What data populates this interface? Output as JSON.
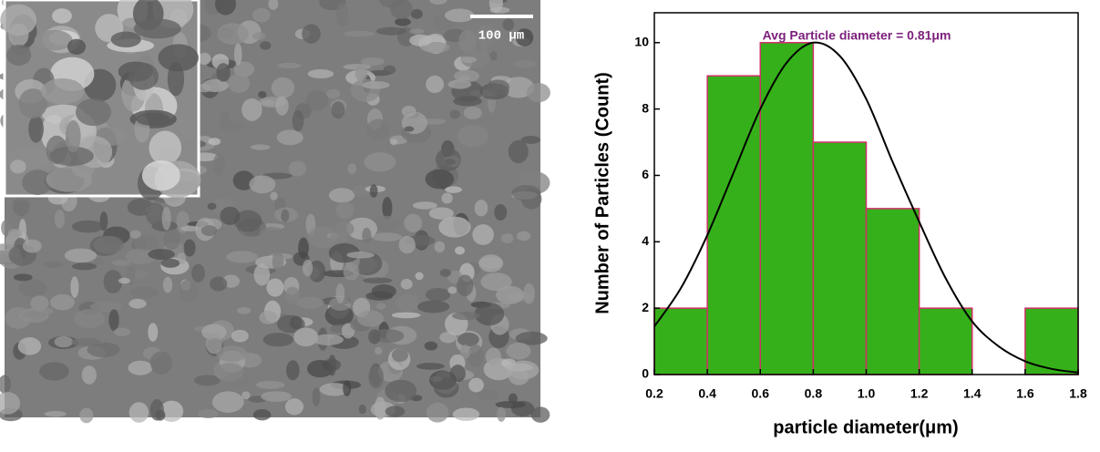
{
  "image": {
    "scale_bar": "100 μm"
  },
  "chart_data": {
    "type": "histogram",
    "annotation": "Avg Particle diameter = 0.81μm",
    "xlabel": "particle diameter(μm)",
    "ylabel": "Number of Particles (Count)",
    "bins": [
      0.2,
      0.4,
      0.6,
      0.8,
      1.0,
      1.2,
      1.4,
      1.6,
      1.8
    ],
    "values": [
      2,
      9,
      10,
      7,
      5,
      2,
      0,
      2
    ],
    "color": "#36b01a",
    "edgecolor": "#d0306a",
    "fit": {
      "color": "#000000",
      "x": [
        0.2,
        0.3,
        0.4,
        0.5,
        0.6,
        0.7,
        0.8,
        0.9,
        1.0,
        1.1,
        1.2,
        1.3,
        1.4,
        1.5,
        1.6,
        1.7,
        1.8
      ],
      "y": [
        1.45,
        2.6,
        4.2,
        6.1,
        8.0,
        9.4,
        10,
        9.6,
        8.3,
        6.4,
        4.6,
        2.9,
        1.6,
        0.85,
        0.4,
        0.17,
        0.06
      ]
    },
    "xlim": [
      0.2,
      1.8
    ],
    "ylim": [
      0,
      10.9
    ],
    "xticks": [
      0.2,
      0.4,
      0.6,
      0.8,
      {
        "value": 1.0,
        "label": "1.0"
      },
      1.2,
      1.4,
      1.6,
      1.8
    ],
    "yticks": [
      0,
      2,
      4,
      6,
      8,
      10
    ]
  }
}
